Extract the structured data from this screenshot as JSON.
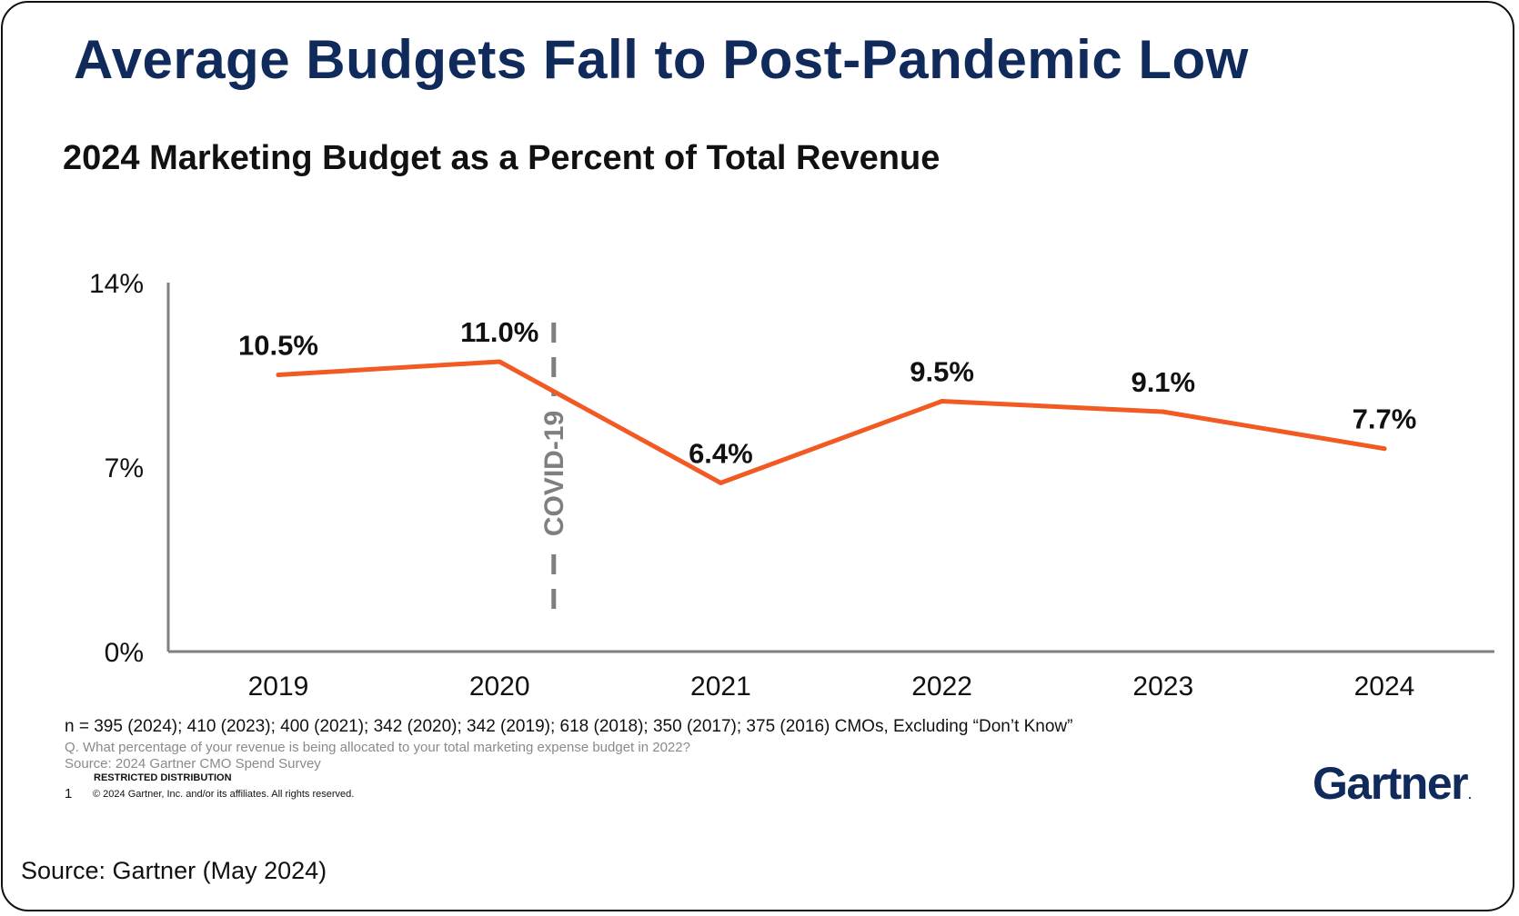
{
  "headline": "Average Budgets Fall to Post-Pandemic Low",
  "chart_data": {
    "type": "line",
    "title": "2024 Marketing Budget as a Percent of Total Revenue",
    "categories": [
      "2019",
      "2020",
      "2021",
      "2022",
      "2023",
      "2024"
    ],
    "values": [
      10.5,
      11.0,
      6.4,
      9.5,
      9.1,
      7.7
    ],
    "value_labels": [
      "10.5%",
      "11.0%",
      "6.4%",
      "9.5%",
      "9.1%",
      "7.7%"
    ],
    "ylim": [
      0,
      14
    ],
    "y_ticks": [
      0,
      7,
      14
    ],
    "y_tick_labels": [
      "0%",
      "7%",
      "14%"
    ],
    "xlabel": "",
    "ylabel": "",
    "grid": false,
    "line_color": "#f15a22",
    "axis_color": "#7f7f7f",
    "annotation": {
      "label": "COVID-19",
      "position_between": [
        "2020",
        "2021"
      ],
      "color": "#7f7f7f",
      "style": "dashed"
    }
  },
  "footnotes": {
    "n_line": "n = 395 (2024); 410 (2023); 400 (2021); 342 (2020); 342 (2019); 618 (2018); 350 (2017); 375 (2016) CMOs, Excluding “Don’t Know”",
    "question": "Q. What percentage of your revenue is being allocated to your total marketing expense budget in 2022?",
    "source": "Source: 2024 Gartner CMO Spend Survey",
    "restricted": "RESTRICTED DISTRIBUTION",
    "page_number": "1",
    "copyright": "© 2024 Gartner, Inc. and/or its affiliates. All rights reserved."
  },
  "logo": {
    "text": "Gartner",
    "mark": "."
  },
  "caption": "Source: Gartner (May 2024)",
  "colors": {
    "navy": "#0f2a5b",
    "orange": "#f15a22",
    "gray": "#7f7f7f"
  }
}
